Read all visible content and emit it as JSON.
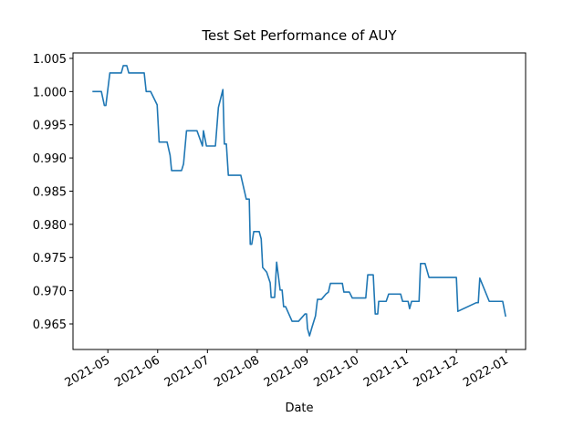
{
  "chart_data": {
    "type": "line",
    "title": "Test Set Performance of AUY",
    "x_label": "Date",
    "x": [
      4.69,
      4.87,
      4.93,
      4.96,
      5.04,
      5.27,
      5.31,
      5.38,
      5.42,
      5.73,
      5.77,
      5.86,
      5.99,
      6.03,
      6.19,
      6.25,
      6.28,
      6.48,
      6.52,
      6.58,
      6.79,
      6.9,
      6.92,
      6.98,
      7.16,
      7.22,
      7.31,
      7.34,
      7.38,
      7.42,
      7.67,
      7.78,
      7.84,
      7.86,
      7.89,
      7.93,
      8.04,
      8.08,
      8.11,
      8.19,
      8.26,
      8.28,
      8.35,
      8.39,
      8.46,
      8.5,
      8.53,
      8.57,
      8.7,
      8.83,
      8.96,
      8.99,
      9.01,
      9.05,
      9.1,
      9.17,
      9.21,
      9.29,
      9.38,
      9.43,
      9.47,
      9.71,
      9.74,
      9.85,
      9.91,
      10.18,
      10.22,
      10.33,
      10.37,
      10.42,
      10.44,
      10.59,
      10.64,
      10.88,
      10.92,
      11.03,
      11.06,
      11.1,
      11.25,
      11.28,
      11.37,
      11.45,
      11.96,
      12.0,
      12.03,
      12.4,
      12.44,
      12.47,
      12.66,
      12.69,
      12.89,
      12.93,
      12.99
    ],
    "series": [
      {
        "name": "AUY",
        "color": "#1f77b4",
        "values": [
          1.0,
          1.0,
          0.9979,
          0.9979,
          1.0028,
          1.0028,
          1.0039,
          1.0039,
          1.0028,
          1.0028,
          1.0,
          1.0,
          0.998,
          0.9924,
          0.9924,
          0.9904,
          0.9881,
          0.9881,
          0.9891,
          0.9941,
          0.9941,
          0.9918,
          0.9941,
          0.9918,
          0.9918,
          0.9976,
          1.0003,
          0.9921,
          0.9921,
          0.9874,
          0.9874,
          0.9838,
          0.9838,
          0.977,
          0.977,
          0.9789,
          0.9789,
          0.9778,
          0.9735,
          0.9728,
          0.9712,
          0.969,
          0.969,
          0.9743,
          0.9701,
          0.9701,
          0.9676,
          0.9676,
          0.9654,
          0.9654,
          0.9665,
          0.9665,
          0.9643,
          0.9632,
          0.9645,
          0.9662,
          0.9687,
          0.9687,
          0.9695,
          0.9698,
          0.9711,
          0.9711,
          0.9698,
          0.9698,
          0.9689,
          0.9689,
          0.9724,
          0.9724,
          0.9665,
          0.9665,
          0.9684,
          0.9684,
          0.9695,
          0.9695,
          0.9684,
          0.9684,
          0.9673,
          0.9684,
          0.9684,
          0.9741,
          0.9741,
          0.972,
          0.972,
          0.972,
          0.9669,
          0.9682,
          0.9682,
          0.9719,
          0.9684,
          0.9684,
          0.9684,
          0.9684,
          0.9661
        ]
      }
    ],
    "xlim": [
      4.3,
      13.39
    ],
    "ylim": [
      0.96115,
      1.00582
    ],
    "xticks": [
      {
        "value": 5,
        "label": "2021-05"
      },
      {
        "value": 6,
        "label": "2021-06"
      },
      {
        "value": 7,
        "label": "2021-07"
      },
      {
        "value": 8,
        "label": "2021-08"
      },
      {
        "value": 9,
        "label": "2021-09"
      },
      {
        "value": 10,
        "label": "2021-10"
      },
      {
        "value": 11,
        "label": "2021-11"
      },
      {
        "value": 12,
        "label": "2021-12"
      },
      {
        "value": 13,
        "label": "2022-01"
      }
    ],
    "yticks": [
      0.965,
      {
        "value": 0.97,
        "label": "0.970"
      },
      0.975,
      {
        "value": 0.98,
        "label": "0.980"
      },
      0.985,
      {
        "value": 0.99,
        "label": "0.990"
      },
      0.995,
      {
        "value": 1.0,
        "label": "1.000"
      },
      1.005
    ],
    "grid": false
  }
}
